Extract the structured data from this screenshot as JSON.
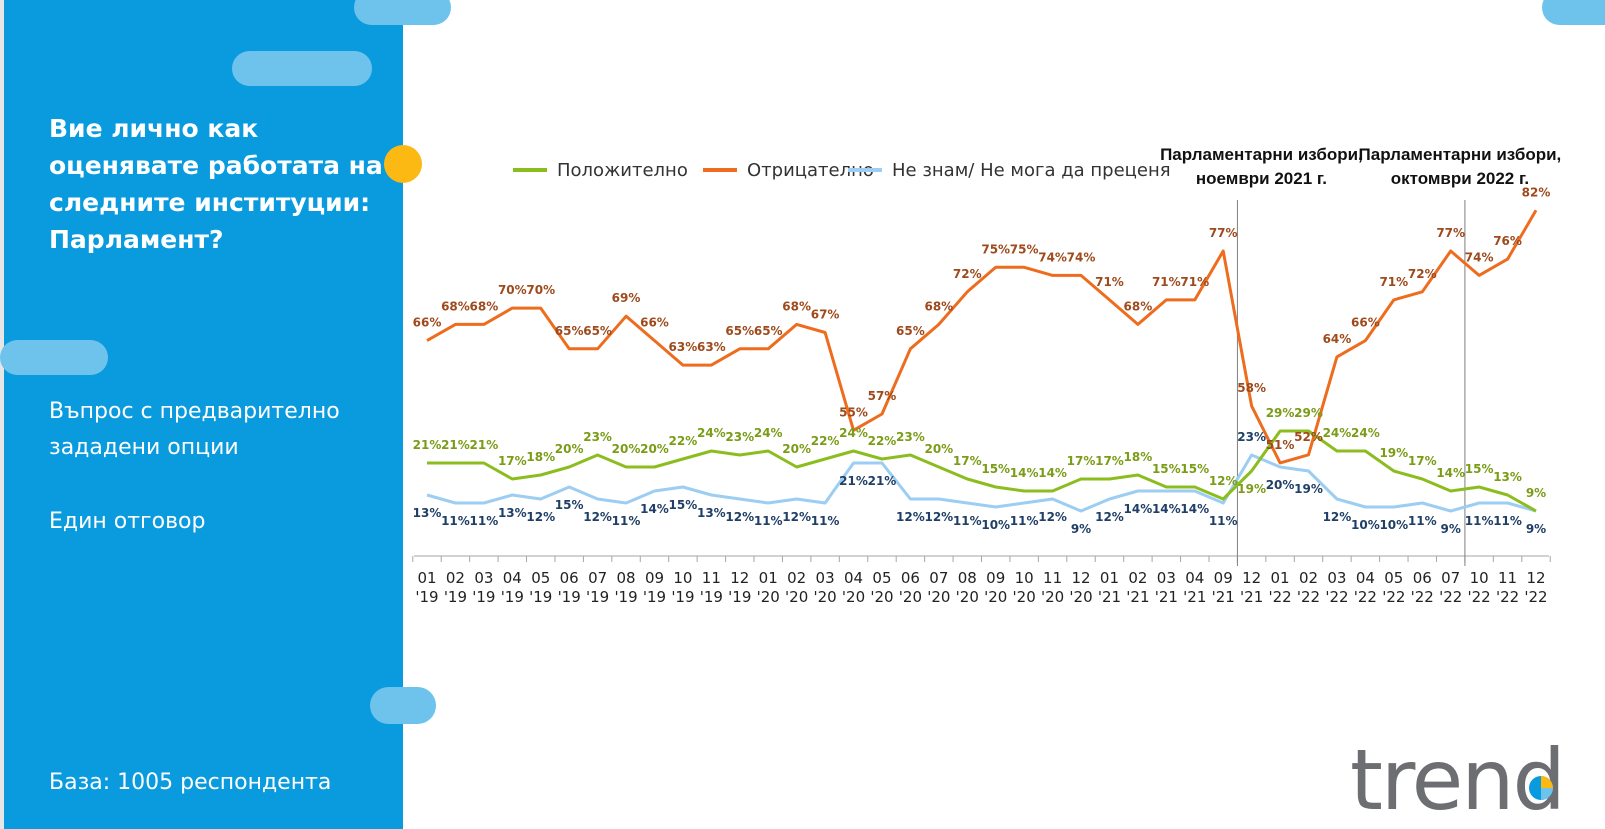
{
  "panel": {
    "question": "Вие лично как оценявате работата на следните институции: Парламент?",
    "note1": "Въпрос с предварително зададени опции",
    "note2": "Един отговор",
    "base": "База:  1005 респондента"
  },
  "logo": {
    "text": "trend"
  },
  "colors": {
    "panel": "#0a9bde",
    "accent": "#fdb913",
    "positive": "#8cbd1f",
    "negative": "#ee6c1e",
    "dontknow": "#9ccdf2"
  },
  "chart_data": {
    "type": "line",
    "categories": [
      "01 '19",
      "02 '19",
      "03 '19",
      "04 '19",
      "05 '19",
      "06 '19",
      "07 '19",
      "08 '19",
      "09 '19",
      "10 '19",
      "11 '19",
      "12 '19",
      "01 '20",
      "02 '20",
      "03 '20",
      "04 '20",
      "05 '20",
      "06 '20",
      "07 '20",
      "08 '20",
      "09 '20",
      "10 '20",
      "11 '20",
      "12 '20",
      "01 '21",
      "02 '21",
      "03 '21",
      "04 '21",
      "09 '21",
      "12 '21",
      "01 '22",
      "02 '22",
      "03 '22",
      "04 '22",
      "05 '22",
      "06 '22",
      "07 '22",
      "10 '22",
      "11 '22",
      "12 '22"
    ],
    "series": [
      {
        "name": "Положително",
        "color": "#8cbd1f",
        "label_color": "#7a9c16",
        "values": [
          21,
          21,
          21,
          17,
          18,
          20,
          23,
          20,
          20,
          22,
          24,
          23,
          24,
          20,
          22,
          24,
          22,
          23,
          20,
          17,
          15,
          14,
          14,
          17,
          17,
          18,
          15,
          15,
          12,
          19,
          29,
          29,
          24,
          24,
          19,
          17,
          14,
          15,
          13,
          9
        ]
      },
      {
        "name": "Отрицателно",
        "color": "#ee6c1e",
        "label_color": "#9e4a1c",
        "values": [
          66,
          68,
          68,
          70,
          70,
          65,
          65,
          69,
          66,
          63,
          63,
          65,
          65,
          68,
          67,
          55,
          57,
          65,
          68,
          72,
          75,
          75,
          74,
          74,
          71,
          68,
          71,
          71,
          77,
          58,
          51,
          52,
          64,
          66,
          71,
          72,
          77,
          74,
          76,
          82
        ]
      },
      {
        "name": "Не знам/ Не мога да преценя",
        "color": "#9ccdf2",
        "label_color": "#1f3f66",
        "values": [
          13,
          11,
          11,
          13,
          12,
          15,
          12,
          11,
          14,
          15,
          13,
          12,
          11,
          12,
          11,
          21,
          21,
          12,
          12,
          11,
          10,
          11,
          12,
          9,
          12,
          14,
          14,
          14,
          11,
          23,
          20,
          19,
          12,
          10,
          10,
          11,
          9,
          11,
          11,
          9
        ]
      }
    ],
    "value_suffix": "%",
    "ylim": [
      0,
      100
    ],
    "legend_placement": "top",
    "annotations": [
      {
        "after_category": "09 '21",
        "text": [
          "Парламентарни избори,",
          "ноември 2021 г."
        ]
      },
      {
        "after_category": "07 '22",
        "text": [
          "Парламентарни избори,",
          "октомври 2022 г."
        ]
      }
    ],
    "grid": false
  }
}
